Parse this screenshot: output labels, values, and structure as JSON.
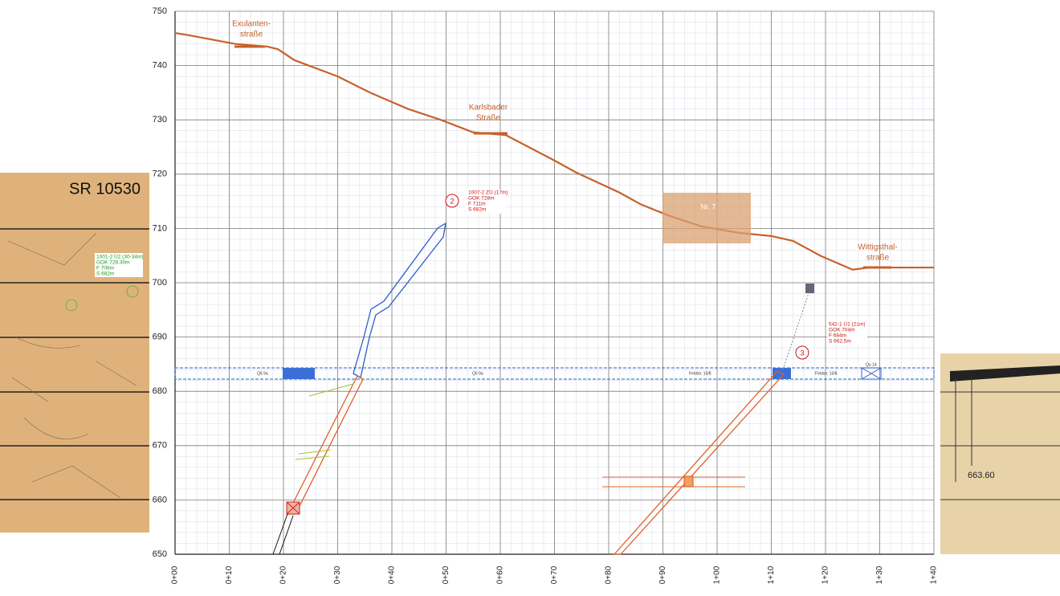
{
  "chart_data": {
    "type": "line",
    "x": [
      0,
      3,
      11,
      17,
      19,
      22,
      30,
      36,
      43,
      49,
      55,
      61,
      70,
      74,
      82,
      86,
      91,
      97,
      104,
      110,
      114,
      119,
      125,
      128,
      140
    ],
    "series": [
      {
        "color": "#c8612a",
        "values": [
          746,
          745.5,
          744,
          743.5,
          743,
          741,
          738,
          735,
          732,
          730,
          727.7,
          727.2,
          722.5,
          720.3,
          716.6,
          714.4,
          712.4,
          710.4,
          709.2,
          708.6,
          707.7,
          705,
          702.4,
          702.8,
          702.8
        ]
      }
    ],
    "xlim": [
      0,
      140
    ],
    "ylim": [
      650,
      750
    ],
    "xticks": [
      {
        "value": 0,
        "label": "0+00"
      },
      {
        "value": 10,
        "label": "0+10"
      },
      {
        "value": 20,
        "label": "0+20"
      },
      {
        "value": 30,
        "label": "0+30"
      },
      {
        "value": 40,
        "label": "0+40"
      },
      {
        "value": 50,
        "label": "0+50"
      },
      {
        "value": 60,
        "label": "0+60"
      },
      {
        "value": 70,
        "label": "0+70"
      },
      {
        "value": 80,
        "label": "0+80"
      },
      {
        "value": 90,
        "label": "0+90"
      },
      {
        "value": 100,
        "label": "1+00"
      },
      {
        "value": 110,
        "label": "1+10"
      },
      {
        "value": 120,
        "label": "1+20"
      },
      {
        "value": 130,
        "label": "1+30"
      },
      {
        "value": 140,
        "label": "1+40"
      }
    ],
    "yticks": [
      650,
      660,
      670,
      680,
      690,
      700,
      710,
      720,
      730,
      740,
      750
    ],
    "grid": true,
    "annotations": {
      "streets": [
        [
          "Exulanten-",
          "straße"
        ],
        [
          "Karlsbader",
          "Straße"
        ],
        [
          "Wittigsthal-",
          "straße"
        ]
      ],
      "zone": "Nr. 7",
      "markers": [
        "2",
        "3"
      ],
      "boreholes": [
        [
          "1007-2 ZÜ (17m)",
          "GOK 728m",
          "F 711m",
          "S 682m"
        ],
        [
          "542-1 Ü1 (21m)",
          "GOK 704m",
          "F 684m",
          "S 662,5m"
        ]
      ],
      "gallery_labels": [
        "Q5 9a",
        "Q5 9a",
        "Feldstr. 10/8",
        "Feldstr. 10/8",
        "Qu 14"
      ],
      "left_inset": {
        "title": "SR 10530",
        "notes": [
          [
            "1001-2 Ü2 (30-34m)",
            "GOK 726.30m",
            "F 706m",
            "S 682m"
          ]
        ]
      },
      "right_inset": {
        "note": "663.60"
      }
    }
  }
}
